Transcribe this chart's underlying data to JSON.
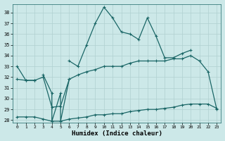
{
  "xlabel": "Humidex (Indice chaleur)",
  "bg_color": "#cce8e8",
  "grid_color": "#b0d0d0",
  "line_color": "#1a6666",
  "xlim": [
    -0.5,
    23.5
  ],
  "ylim": [
    27.8,
    38.8
  ],
  "xticks": [
    0,
    1,
    2,
    3,
    4,
    5,
    6,
    7,
    8,
    9,
    10,
    11,
    12,
    13,
    14,
    15,
    16,
    17,
    18,
    19,
    20,
    21,
    22,
    23
  ],
  "yticks": [
    28,
    29,
    30,
    31,
    32,
    33,
    34,
    35,
    36,
    37,
    38
  ],
  "line1_y": [
    33.0,
    31.7,
    31.7,
    null,
    null,
    null,
    33.5,
    33.0,
    35.0,
    37.0,
    38.5,
    37.5,
    36.2,
    36.0,
    35.5,
    37.5,
    35.8,
    33.8,
    33.8,
    34.2,
    34.5,
    null,
    null,
    null
  ],
  "line2_y": [
    31.8,
    31.7,
    31.7,
    32.0,
    29.2,
    29.3,
    31.8,
    32.2,
    32.5,
    32.7,
    33.0,
    33.0,
    33.0,
    33.3,
    33.5,
    33.5,
    33.5,
    33.5,
    33.7,
    33.7,
    34.0,
    33.5,
    32.5,
    29.0
  ],
  "line4_y": [
    28.3,
    28.3,
    28.3,
    28.1,
    27.9,
    27.9,
    28.1,
    28.2,
    28.3,
    28.5,
    28.5,
    28.6,
    28.6,
    28.8,
    28.9,
    29.0,
    29.0,
    29.1,
    29.2,
    29.4,
    29.5,
    29.5,
    29.5,
    29.1
  ],
  "spike_x": [
    3,
    4,
    4,
    5,
    5,
    6
  ],
  "spike_y": [
    32.2,
    30.5,
    27.9,
    30.5,
    27.9,
    31.8
  ]
}
